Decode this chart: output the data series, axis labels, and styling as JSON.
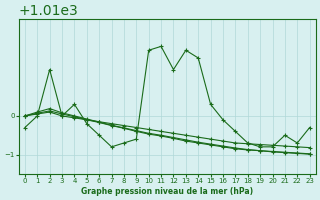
{
  "background_color": "#d8f0f0",
  "plot_bg_color": "#d8f0f0",
  "line_color": "#1a6b1a",
  "grid_color": "#b0d8d8",
  "title": "Graphe pression niveau de la mer (hPa)",
  "xlabel": "Graphe pression niveau de la mer (hPa)",
  "ylim": [
    1008.5,
    1012.5
  ],
  "yticks": [
    1009,
    1010
  ],
  "xlim": [
    -0.5,
    23.5
  ],
  "xticks": [
    0,
    1,
    2,
    3,
    4,
    5,
    6,
    7,
    8,
    9,
    10,
    11,
    12,
    13,
    14,
    15,
    16,
    17,
    18,
    19,
    20,
    21,
    22,
    23
  ],
  "series": [
    {
      "x": [
        0,
        1,
        2,
        3,
        4,
        5,
        6,
        7,
        8,
        9,
        10,
        11,
        12,
        13,
        14,
        15,
        16,
        17,
        18,
        19,
        20,
        21,
        22,
        23
      ],
      "y": [
        1009.7,
        1010.0,
        1011.2,
        1010.0,
        1010.3,
        1009.8,
        1009.5,
        1009.2,
        1009.3,
        1009.4,
        1011.7,
        1011.8,
        1011.2,
        1011.7,
        1011.5,
        1010.3,
        1009.9,
        1009.6,
        1009.3,
        1009.2,
        1009.2,
        1009.5,
        1009.3,
        1009.7
      ]
    },
    {
      "x": [
        0,
        1,
        2,
        3,
        4,
        5,
        6,
        7,
        8,
        9,
        10,
        11,
        12,
        13,
        14,
        15,
        16,
        17,
        18,
        19,
        20,
        21,
        22,
        23
      ],
      "y": [
        1010.0,
        1010.05,
        1010.1,
        1010.0,
        1009.95,
        1009.9,
        1009.85,
        1009.8,
        1009.75,
        1009.7,
        1009.65,
        1009.6,
        1009.55,
        1009.5,
        1009.45,
        1009.4,
        1009.35,
        1009.3,
        1009.28,
        1009.26,
        1009.24,
        1009.22,
        1009.2,
        1009.18
      ]
    },
    {
      "x": [
        0,
        1,
        2,
        3,
        4,
        5,
        6,
        7,
        8,
        9,
        10,
        11,
        12,
        13,
        14,
        15,
        16,
        17,
        18,
        19,
        20,
        21,
        22,
        23
      ],
      "y": [
        1010.0,
        1010.07,
        1010.13,
        1010.05,
        1009.98,
        1009.9,
        1009.83,
        1009.75,
        1009.68,
        1009.6,
        1009.53,
        1009.48,
        1009.42,
        1009.35,
        1009.3,
        1009.25,
        1009.2,
        1009.15,
        1009.12,
        1009.1,
        1009.08,
        1009.06,
        1009.04,
        1009.02
      ]
    },
    {
      "x": [
        0,
        1,
        2,
        3,
        4,
        5,
        6,
        7,
        8,
        9,
        10,
        11,
        12,
        13,
        14,
        15,
        16,
        17,
        18,
        19,
        20,
        21,
        22,
        23
      ],
      "y": [
        1010.0,
        1010.1,
        1010.19,
        1010.08,
        1010.0,
        1009.92,
        1009.84,
        1009.76,
        1009.69,
        1009.62,
        1009.55,
        1009.5,
        1009.44,
        1009.38,
        1009.32,
        1009.27,
        1009.22,
        1009.17,
        1009.13,
        1009.1,
        1009.07,
        1009.05,
        1009.03,
        1009.01
      ]
    }
  ]
}
